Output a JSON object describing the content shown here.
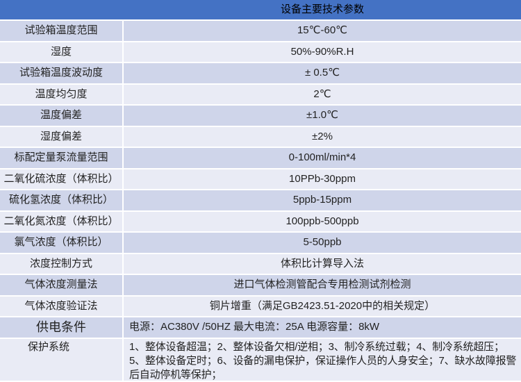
{
  "title": "设备主要技术参数",
  "rows": [
    {
      "label": "试验箱温度范围",
      "value": "15℃-60℃"
    },
    {
      "label": "湿度",
      "value": "50%-90%R.H"
    },
    {
      "label": "试验箱温度波动度",
      "value": "± 0.5℃"
    },
    {
      "label": "温度均匀度",
      "value": "2℃"
    },
    {
      "label": "温度偏差",
      "value": "±1.0℃"
    },
    {
      "label": "湿度偏差",
      "value": "±2%"
    },
    {
      "label": "标配定量泵流量范围",
      "value": "0-100ml/min*4"
    },
    {
      "label": "二氧化硫浓度（体积比）",
      "value": "10PPb-30ppm"
    },
    {
      "label": "硫化氢浓度（体积比）",
      "value": "5ppb-15ppm"
    },
    {
      "label": "二氧化氮浓度（体积比）",
      "value": "100ppb-500ppb"
    },
    {
      "label": "氯气浓度（体积比）",
      "value": "5-50ppb"
    },
    {
      "label": "浓度控制方式",
      "value": "体积比计算导入法"
    },
    {
      "label": "气体浓度测量法",
      "value": "进口气体检测管配合专用检测试剂检测"
    },
    {
      "label": "气体浓度验证法",
      "value": "铜片增重（满足GB2423.51-2020中的相关规定）"
    },
    {
      "label": "供电条件",
      "value": "电源：AC380V /50HZ   最大电流：25A   电源容量：8kW"
    },
    {
      "label": "保护系统",
      "value": "1、整体设备超温；2、整体设备欠相/逆相；3、制冷系统过载；4、制冷系统超压；5、整体设备定时；6、设备的漏电保护，保证操作人员的人身安全；7、缺水故障报警后自动停机等保护；"
    }
  ],
  "colors": {
    "header": "#4472C4",
    "row_dark": "#CFD5EA",
    "row_light": "#E9EBF5"
  }
}
